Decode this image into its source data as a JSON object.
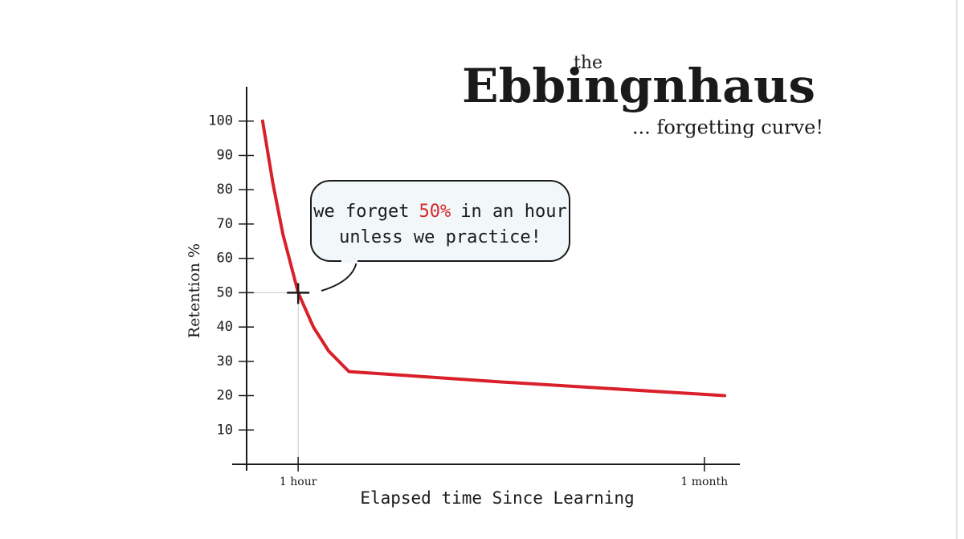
{
  "chart_data": {
    "type": "line",
    "title": {
      "prefix": "the",
      "main": "Ebbingnhaus",
      "suffix": "... forgetting curve!"
    },
    "y_label": "Retention %",
    "x_label": "Elapsed time Since Learning",
    "x": [
      0.3,
      0.5,
      0.7,
      1,
      1.3,
      1.6,
      2,
      5,
      9.4
    ],
    "values": [
      100,
      82,
      67,
      50,
      40,
      33,
      27,
      24,
      20
    ],
    "color": "#d9202a",
    "accent_color": "#d42a2a",
    "xlim": [
      -0.3,
      9.7
    ],
    "ylim": [
      0,
      110
    ],
    "xticks": [
      {
        "value": 1,
        "label": "1 hour"
      },
      {
        "value": 9,
        "label": "1 month"
      }
    ],
    "yticks": [
      10,
      20,
      30,
      40,
      50,
      60,
      70,
      80,
      90,
      100
    ],
    "highlight": {
      "x": 1,
      "y": 50
    },
    "annotation": {
      "line1": [
        "we forget",
        "50%",
        "in an hour"
      ],
      "line2": "unless we practice!"
    }
  }
}
